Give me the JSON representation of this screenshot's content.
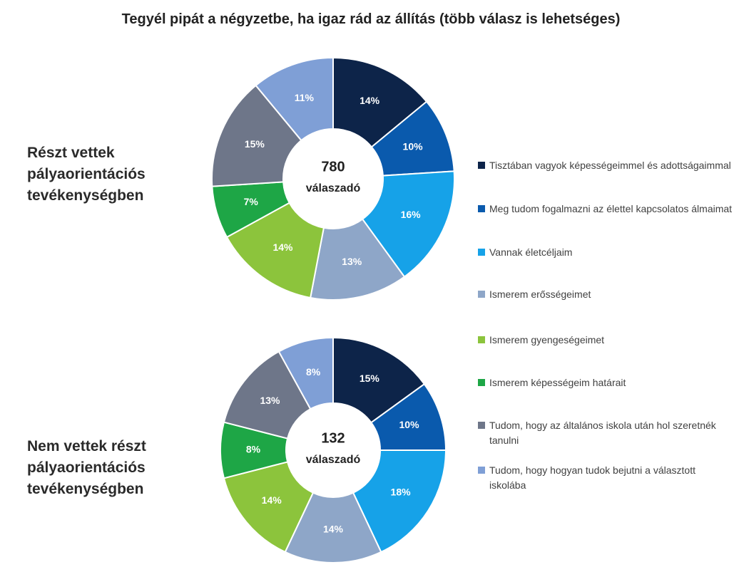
{
  "title": "Tegyél pipát a négyzetbe, ha igaz rád az állítás (több válasz is lehetséges)",
  "legend": {
    "categories": [
      "Tisztában vagyok képességeimmel és adottságaimmal",
      "Meg tudom fogalmazni az élettel kapcsolatos álmaimat",
      "Vannak életcéljaim",
      "Ismerem erősségeimet",
      "Ismerem gyengeségeimet",
      "Ismerem képességeim határait",
      "Tudom, hogy az általános iskola után hol szeretnék tanulni",
      "Tudom, hogy hogyan tudok bejutni a választott iskolába"
    ],
    "colors": [
      "#0d2449",
      "#0a5aad",
      "#16a2e8",
      "#8ea6c8",
      "#8cc43c",
      "#1ea646",
      "#6e7689",
      "#7f9fd6"
    ]
  },
  "chart_data": [
    {
      "type": "donut",
      "group": "Részt vettek pályaorientációs tevékenységben",
      "respondents": 780,
      "center_label": "válaszadó",
      "values": [
        14,
        10,
        16,
        13,
        14,
        7,
        15,
        11
      ],
      "value_labels": [
        "14%",
        "10%",
        "16%",
        "13%",
        "14%",
        "7%",
        "15%",
        "11%"
      ]
    },
    {
      "type": "donut",
      "group": "Nem vettek részt pályaorientációs tevékenységben",
      "respondents": 132,
      "center_label": "válaszadó",
      "values": [
        15,
        10,
        18,
        14,
        14,
        8,
        13,
        8
      ],
      "value_labels": [
        "15%",
        "10%",
        "18%",
        "14%",
        "14%",
        "8%",
        "13%",
        "8%"
      ]
    }
  ]
}
